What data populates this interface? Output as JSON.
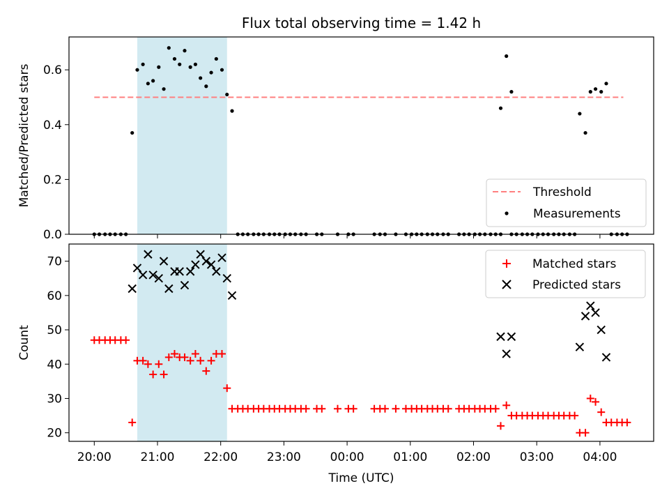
{
  "chart_data": {
    "type": "scatter",
    "title": "Flux total observing time = 1.42 h",
    "xlabel": "Time (UTC)",
    "x_unit": "hours UTC (values past 24 are after midnight)",
    "x_ticks": [
      {
        "value": 20,
        "label": "20:00"
      },
      {
        "value": 21,
        "label": "21:00"
      },
      {
        "value": 22,
        "label": "22:00"
      },
      {
        "value": 23,
        "label": "23:00"
      },
      {
        "value": 24,
        "label": "00:00"
      },
      {
        "value": 25,
        "label": "01:00"
      },
      {
        "value": 26,
        "label": "02:00"
      },
      {
        "value": 27,
        "label": "03:00"
      },
      {
        "value": 28,
        "label": "04:00"
      }
    ],
    "xlim": [
      19.6,
      28.85
    ],
    "shaded_interval": {
      "x_start": 20.68,
      "x_end": 22.1,
      "color": "#add8e6"
    },
    "panels": [
      {
        "id": "ratio",
        "ylabel": "Matched/Predicted stars",
        "ylim": [
          0,
          0.72
        ],
        "y_ticks": [
          {
            "value": 0.0,
            "label": "0.0"
          },
          {
            "value": 0.2,
            "label": "0.2"
          },
          {
            "value": 0.4,
            "label": "0.4"
          },
          {
            "value": 0.6,
            "label": "0.6"
          }
        ],
        "threshold": {
          "value": 0.5,
          "x_start": 20.0,
          "x_end": 28.37,
          "color": "#ff7f7f",
          "label": "Threshold"
        },
        "series": [
          {
            "name": "Measurements",
            "marker": "dot",
            "color": "#000000",
            "points": [
              [
                20.0,
                0
              ],
              [
                20.08,
                0
              ],
              [
                20.17,
                0
              ],
              [
                20.25,
                0
              ],
              [
                20.33,
                0
              ],
              [
                20.42,
                0
              ],
              [
                20.5,
                0
              ],
              [
                20.6,
                0.37
              ],
              [
                20.68,
                0.6
              ],
              [
                20.77,
                0.62
              ],
              [
                20.85,
                0.55
              ],
              [
                20.93,
                0.56
              ],
              [
                21.02,
                0.61
              ],
              [
                21.1,
                0.53
              ],
              [
                21.18,
                0.68
              ],
              [
                21.27,
                0.64
              ],
              [
                21.35,
                0.62
              ],
              [
                21.43,
                0.67
              ],
              [
                21.52,
                0.61
              ],
              [
                21.6,
                0.62
              ],
              [
                21.68,
                0.57
              ],
              [
                21.77,
                0.54
              ],
              [
                21.85,
                0.59
              ],
              [
                21.93,
                0.64
              ],
              [
                22.02,
                0.6
              ],
              [
                22.1,
                0.51
              ],
              [
                22.18,
                0.45
              ],
              [
                22.27,
                0
              ],
              [
                22.35,
                0
              ],
              [
                22.43,
                0
              ],
              [
                22.52,
                0
              ],
              [
                22.6,
                0
              ],
              [
                22.68,
                0
              ],
              [
                22.77,
                0
              ],
              [
                22.85,
                0
              ],
              [
                22.93,
                0
              ],
              [
                23.02,
                0
              ],
              [
                23.1,
                0
              ],
              [
                23.18,
                0
              ],
              [
                23.27,
                0
              ],
              [
                23.35,
                0
              ],
              [
                23.52,
                0
              ],
              [
                23.6,
                0
              ],
              [
                23.85,
                0
              ],
              [
                24.02,
                0
              ],
              [
                24.1,
                0
              ],
              [
                24.43,
                0
              ],
              [
                24.52,
                0
              ],
              [
                24.6,
                0
              ],
              [
                24.77,
                0
              ],
              [
                24.93,
                0
              ],
              [
                25.02,
                0
              ],
              [
                25.1,
                0
              ],
              [
                25.18,
                0
              ],
              [
                25.27,
                0
              ],
              [
                25.35,
                0
              ],
              [
                25.43,
                0
              ],
              [
                25.52,
                0
              ],
              [
                25.6,
                0
              ],
              [
                25.77,
                0
              ],
              [
                25.85,
                0
              ],
              [
                25.93,
                0
              ],
              [
                26.02,
                0
              ],
              [
                26.1,
                0
              ],
              [
                26.18,
                0
              ],
              [
                26.27,
                0
              ],
              [
                26.35,
                0
              ],
              [
                26.43,
                0
              ],
              [
                26.6,
                0
              ],
              [
                26.68,
                0
              ],
              [
                26.77,
                0
              ],
              [
                26.85,
                0
              ],
              [
                26.93,
                0
              ],
              [
                27.02,
                0
              ],
              [
                27.1,
                0
              ],
              [
                27.18,
                0
              ],
              [
                27.27,
                0
              ],
              [
                27.35,
                0
              ],
              [
                27.43,
                0
              ],
              [
                27.52,
                0
              ],
              [
                27.6,
                0
              ],
              [
                26.43,
                0.46
              ],
              [
                26.52,
                0.65
              ],
              [
                26.6,
                0.52
              ],
              [
                27.68,
                0.44
              ],
              [
                27.77,
                0.37
              ],
              [
                27.85,
                0.52
              ],
              [
                27.93,
                0.53
              ],
              [
                28.02,
                0.52
              ],
              [
                28.1,
                0.55
              ],
              [
                28.18,
                0
              ],
              [
                28.27,
                0
              ],
              [
                28.35,
                0
              ],
              [
                28.43,
                0
              ]
            ]
          }
        ],
        "legend": {
          "position": "lower-right",
          "entries": [
            "Threshold",
            "Measurements"
          ]
        }
      },
      {
        "id": "count",
        "ylabel": "Count",
        "ylim": [
          17.5,
          75
        ],
        "y_ticks": [
          {
            "value": 20,
            "label": "20"
          },
          {
            "value": 30,
            "label": "30"
          },
          {
            "value": 40,
            "label": "40"
          },
          {
            "value": 50,
            "label": "50"
          },
          {
            "value": 60,
            "label": "60"
          },
          {
            "value": 70,
            "label": "70"
          }
        ],
        "series": [
          {
            "name": "Matched stars",
            "marker": "plus",
            "color": "#ff0000",
            "points": [
              [
                20.0,
                47
              ],
              [
                20.08,
                47
              ],
              [
                20.17,
                47
              ],
              [
                20.25,
                47
              ],
              [
                20.33,
                47
              ],
              [
                20.42,
                47
              ],
              [
                20.5,
                47
              ],
              [
                20.6,
                23
              ],
              [
                20.68,
                41
              ],
              [
                20.77,
                41
              ],
              [
                20.85,
                40
              ],
              [
                20.93,
                37
              ],
              [
                21.02,
                40
              ],
              [
                21.1,
                37
              ],
              [
                21.18,
                42
              ],
              [
                21.27,
                43
              ],
              [
                21.35,
                42
              ],
              [
                21.43,
                42
              ],
              [
                21.52,
                41
              ],
              [
                21.6,
                43
              ],
              [
                21.68,
                41
              ],
              [
                21.77,
                38
              ],
              [
                21.85,
                41
              ],
              [
                21.93,
                43
              ],
              [
                22.02,
                43
              ],
              [
                22.1,
                33
              ],
              [
                22.18,
                27
              ],
              [
                22.27,
                27
              ],
              [
                22.35,
                27
              ],
              [
                22.43,
                27
              ],
              [
                22.52,
                27
              ],
              [
                22.6,
                27
              ],
              [
                22.68,
                27
              ],
              [
                22.77,
                27
              ],
              [
                22.85,
                27
              ],
              [
                22.93,
                27
              ],
              [
                23.02,
                27
              ],
              [
                23.1,
                27
              ],
              [
                23.18,
                27
              ],
              [
                23.27,
                27
              ],
              [
                23.35,
                27
              ],
              [
                23.52,
                27
              ],
              [
                23.6,
                27
              ],
              [
                23.85,
                27
              ],
              [
                24.02,
                27
              ],
              [
                24.1,
                27
              ],
              [
                24.43,
                27
              ],
              [
                24.52,
                27
              ],
              [
                24.6,
                27
              ],
              [
                24.77,
                27
              ],
              [
                24.93,
                27
              ],
              [
                25.02,
                27
              ],
              [
                25.1,
                27
              ],
              [
                25.18,
                27
              ],
              [
                25.27,
                27
              ],
              [
                25.35,
                27
              ],
              [
                25.43,
                27
              ],
              [
                25.52,
                27
              ],
              [
                25.6,
                27
              ],
              [
                25.77,
                27
              ],
              [
                25.85,
                27
              ],
              [
                25.93,
                27
              ],
              [
                26.02,
                27
              ],
              [
                26.1,
                27
              ],
              [
                26.18,
                27
              ],
              [
                26.27,
                27
              ],
              [
                26.35,
                27
              ],
              [
                26.43,
                22
              ],
              [
                26.52,
                28
              ],
              [
                26.6,
                25
              ],
              [
                26.68,
                25
              ],
              [
                26.77,
                25
              ],
              [
                26.85,
                25
              ],
              [
                26.93,
                25
              ],
              [
                27.02,
                25
              ],
              [
                27.1,
                25
              ],
              [
                27.18,
                25
              ],
              [
                27.27,
                25
              ],
              [
                27.35,
                25
              ],
              [
                27.43,
                25
              ],
              [
                27.52,
                25
              ],
              [
                27.6,
                25
              ],
              [
                27.68,
                20
              ],
              [
                27.77,
                20
              ],
              [
                27.85,
                30
              ],
              [
                27.93,
                29
              ],
              [
                28.02,
                26
              ],
              [
                28.1,
                23
              ],
              [
                28.18,
                23
              ],
              [
                28.27,
                23
              ],
              [
                28.35,
                23
              ],
              [
                28.43,
                23
              ]
            ]
          },
          {
            "name": "Predicted stars",
            "marker": "x",
            "color": "#000000",
            "points": [
              [
                20.6,
                62
              ],
              [
                20.68,
                68
              ],
              [
                20.77,
                66
              ],
              [
                20.85,
                72
              ],
              [
                20.93,
                66
              ],
              [
                21.02,
                65
              ],
              [
                21.1,
                70
              ],
              [
                21.18,
                62
              ],
              [
                21.27,
                67
              ],
              [
                21.35,
                67
              ],
              [
                21.43,
                63
              ],
              [
                21.52,
                67
              ],
              [
                21.6,
                69
              ],
              [
                21.68,
                72
              ],
              [
                21.77,
                70
              ],
              [
                21.85,
                69
              ],
              [
                21.93,
                67
              ],
              [
                22.02,
                71
              ],
              [
                22.1,
                65
              ],
              [
                22.18,
                60
              ],
              [
                26.43,
                48
              ],
              [
                26.52,
                43
              ],
              [
                26.6,
                48
              ],
              [
                27.68,
                45
              ],
              [
                27.77,
                54
              ],
              [
                27.85,
                57
              ],
              [
                27.93,
                55
              ],
              [
                28.02,
                50
              ],
              [
                28.1,
                42
              ]
            ]
          }
        ],
        "legend": {
          "position": "upper-right",
          "entries": [
            "Matched stars",
            "Predicted stars"
          ]
        }
      }
    ]
  }
}
